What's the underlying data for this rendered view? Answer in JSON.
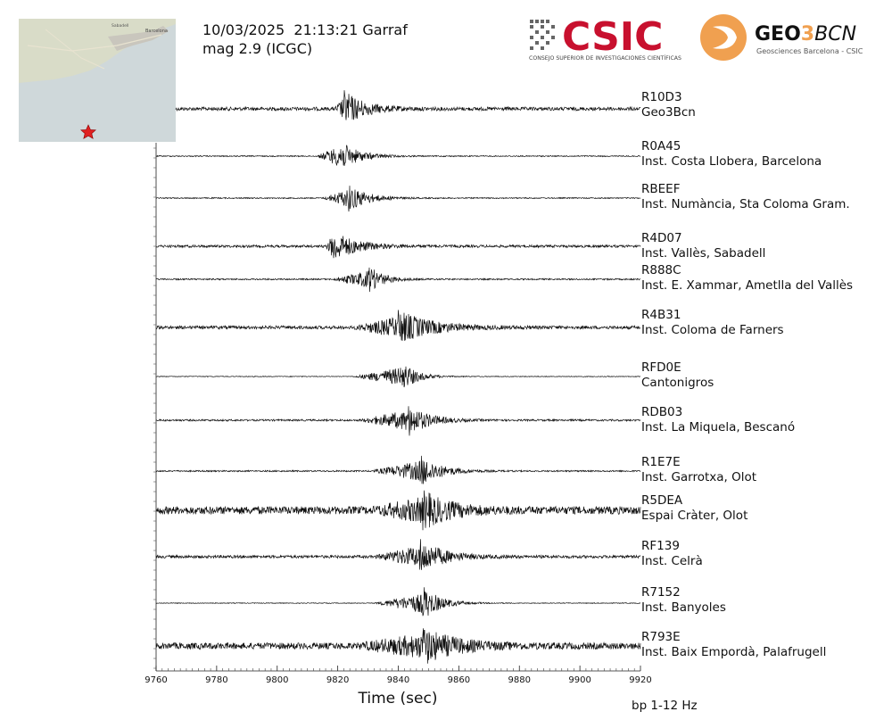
{
  "header": {
    "title": "10/03/2025  21:13:21 Garraf",
    "subtitle": "mag 2.9 (ICGC)"
  },
  "map": {
    "place_labels": [
      "Barcelona",
      "Sabadell"
    ],
    "epicenter_marker": "star",
    "land_color": "#d9dcc8",
    "sea_color": "#cfd8da",
    "marker_color": "#e02020"
  },
  "logos": {
    "csic": {
      "name": "CSIC",
      "tagline": "CONSEJO SUPERIOR DE INVESTIGACIONES CIENTÍFICAS",
      "color": "#c8102e"
    },
    "geo3bcn": {
      "name_left": "GEO",
      "name_num": "3",
      "name_right": "BCN",
      "tagline": "Geosciences Barcelona - CSIC",
      "accent": "#f0a050"
    }
  },
  "filter_label": "bp 1-12 Hz",
  "chart_data": {
    "type": "line",
    "title": "",
    "xlabel": "Time (sec)",
    "ylabel": "",
    "xlim": [
      9760,
      9920
    ],
    "xticks": [
      "9760",
      "9780",
      "9800",
      "9820",
      "9840",
      "9860",
      "9880",
      "9900",
      "9920"
    ],
    "xtick_values": [
      9760,
      9780,
      9800,
      9820,
      9840,
      9860,
      9880,
      9900,
      9920
    ],
    "series": [
      {
        "name": "R10D3",
        "site": "Geo3Bcn",
        "p_arrival": 9819,
        "peak": 9822,
        "noise": 0.1,
        "amp": 1.0,
        "duration": 14
      },
      {
        "name": "R0A45",
        "site": "Inst. Costa Llobera, Barcelona",
        "p_arrival": 9813,
        "peak": 9820,
        "noise": 0.03,
        "amp": 0.95,
        "duration": 13
      },
      {
        "name": "RBEEF",
        "site": "Inst. Numància, Sta Coloma Gram.",
        "p_arrival": 9815,
        "peak": 9823,
        "noise": 0.03,
        "amp": 0.85,
        "duration": 13
      },
      {
        "name": "R4D07",
        "site": "Inst. Vallès, Sabadell",
        "p_arrival": 9816,
        "peak": 9818,
        "noise": 0.07,
        "amp": 0.9,
        "duration": 16
      },
      {
        "name": "R888C",
        "site": "Inst. E. Xammar, Ametlla del Vallès",
        "p_arrival": 9818,
        "peak": 9830,
        "noise": 0.04,
        "amp": 0.8,
        "duration": 10
      },
      {
        "name": "R4B31",
        "site": "Inst. Coloma de Farners",
        "p_arrival": 9825,
        "peak": 9840,
        "noise": 0.09,
        "amp": 0.95,
        "duration": 22
      },
      {
        "name": "RFD0E",
        "site": "Cantonigros",
        "p_arrival": 9825,
        "peak": 9841,
        "noise": 0.02,
        "amp": 0.9,
        "duration": 10
      },
      {
        "name": "RDB03",
        "site": "Inst. La Miquela, Bescanó",
        "p_arrival": 9827,
        "peak": 9843,
        "noise": 0.05,
        "amp": 0.95,
        "duration": 14
      },
      {
        "name": "R1E7E",
        "site": "Inst. Garrotxa, Olot",
        "p_arrival": 9831,
        "peak": 9847,
        "noise": 0.04,
        "amp": 0.95,
        "duration": 14
      },
      {
        "name": "R5DEA",
        "site": "Espai Cràter, Olot",
        "p_arrival": 9831,
        "peak": 9848,
        "noise": 0.22,
        "amp": 1.0,
        "duration": 18
      },
      {
        "name": "RF139",
        "site": "Inst. Celrà",
        "p_arrival": 9832,
        "peak": 9847,
        "noise": 0.08,
        "amp": 1.0,
        "duration": 16
      },
      {
        "name": "R7152",
        "site": "Inst. Banyoles",
        "p_arrival": 9832,
        "peak": 9848,
        "noise": 0.02,
        "amp": 1.0,
        "duration": 12
      },
      {
        "name": "R793E",
        "site": "Inst. Baix Empordà, Palafrugell",
        "p_arrival": 9826,
        "peak": 9848,
        "noise": 0.18,
        "amp": 1.0,
        "duration": 22
      }
    ]
  }
}
